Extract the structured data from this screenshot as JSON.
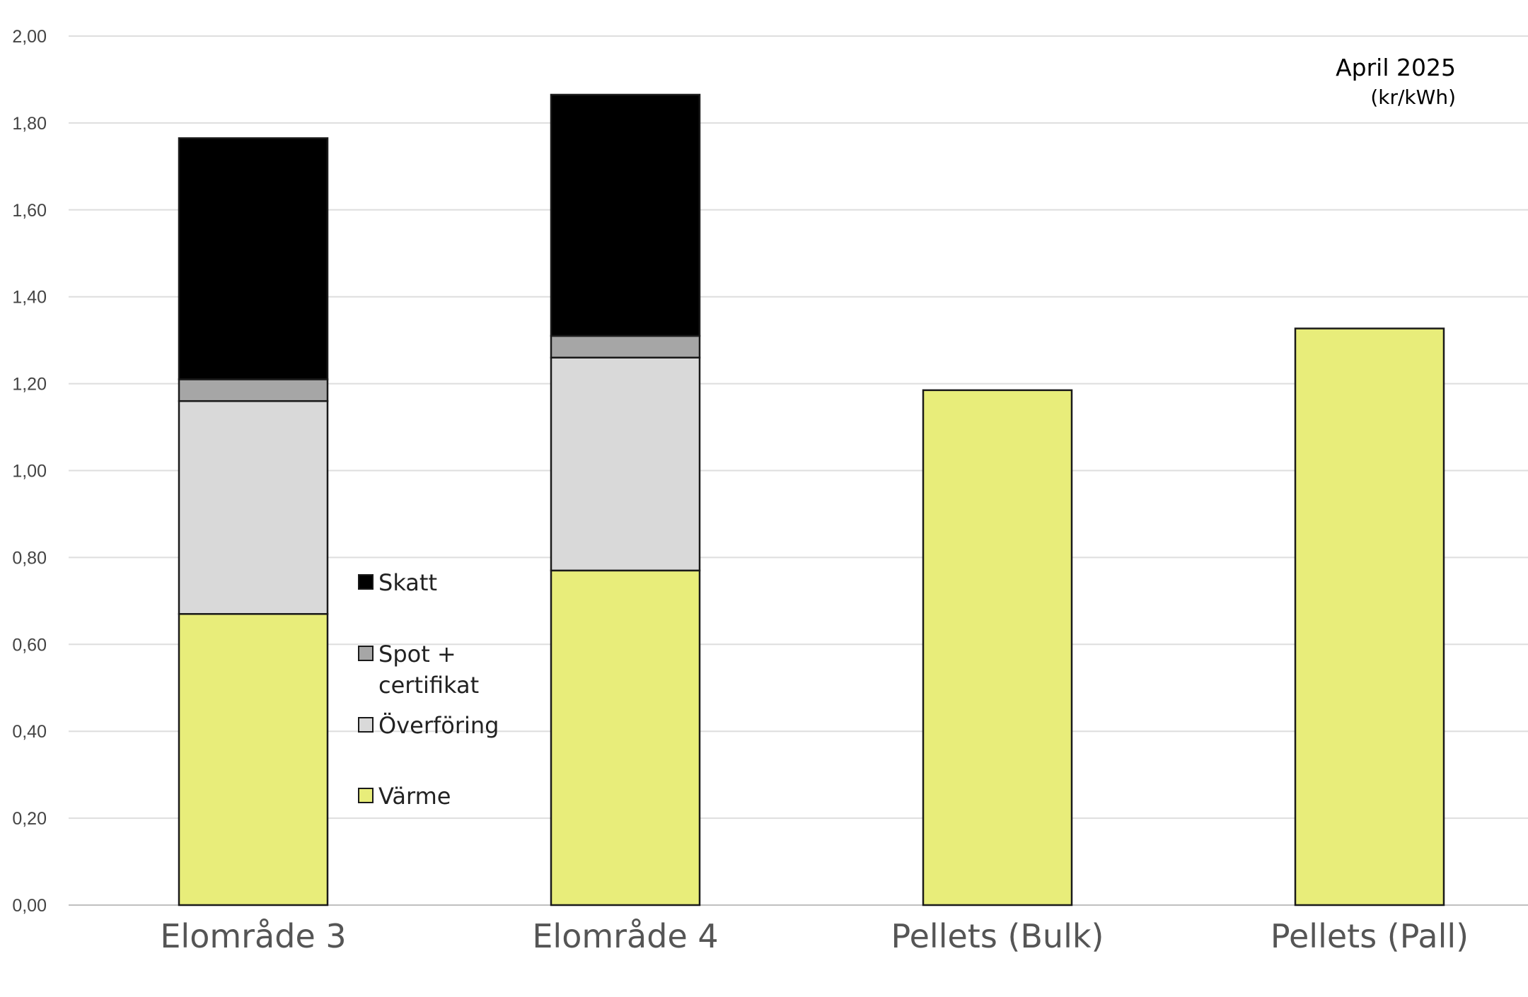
{
  "chart_data": {
    "type": "bar",
    "stacked": true,
    "title": "April 2025",
    "subtitle": "(kr/kWh)",
    "categories": [
      "Elområde 3",
      "Elområde 4",
      "Pellets (Bulk)",
      "Pellets (Pall)"
    ],
    "series": [
      {
        "name": "Värme",
        "color": "#e8ed7a",
        "values": [
          0.67,
          0.77,
          1.185,
          1.327
        ]
      },
      {
        "name": "Överföring",
        "color": "#d9d9d9",
        "values": [
          0.49,
          0.49,
          0,
          0
        ]
      },
      {
        "name": "Spot + certifikat",
        "color": "#a6a6a6",
        "values": [
          0.05,
          0.05,
          0,
          0
        ]
      },
      {
        "name": "Skatt",
        "color": "#000000",
        "values": [
          0.555,
          0.555,
          0,
          0
        ]
      }
    ],
    "legend_order": [
      "Skatt",
      "Spot + certifikat",
      "Överföring",
      "Värme"
    ],
    "legend_position": "middle",
    "ylim": [
      0,
      2.0
    ],
    "yticks": [
      "0,00",
      "0,20",
      "0,40",
      "0,60",
      "0,80",
      "1,00",
      "1,20",
      "1,40",
      "1,60",
      "1,80",
      "2,00"
    ],
    "grid": true,
    "xlabel": "",
    "ylabel": ""
  }
}
